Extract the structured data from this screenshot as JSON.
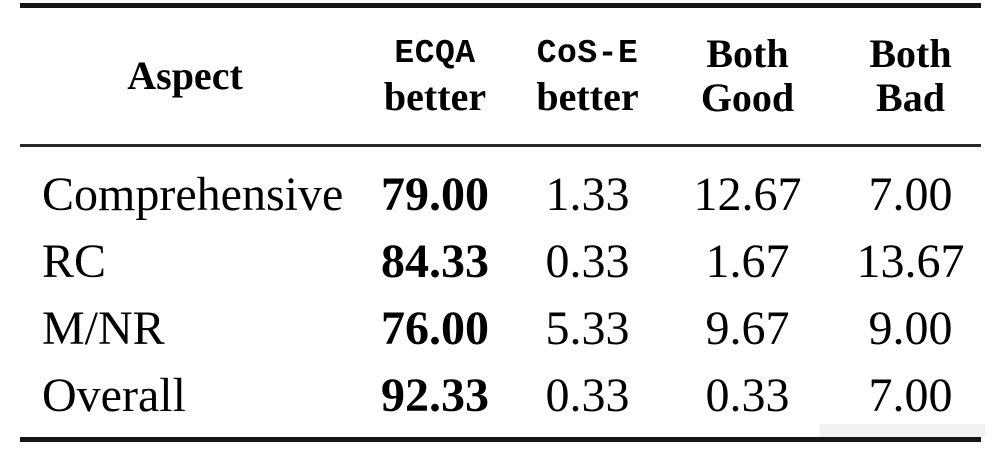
{
  "page": {
    "background": "#ffffff"
  },
  "colors": {
    "text": "#000000",
    "rule_thick": "#161616",
    "rule_mid": "#2a2a2a",
    "artifact": "#f1f1f1"
  },
  "table": {
    "header": {
      "aspect": "Aspect",
      "ecqa_line1": "ECQA",
      "ecqa_line2": "better",
      "cose_line1": "CoS-E",
      "cose_line2": "better",
      "both_good_line1": "Both",
      "both_good_line2": "Good",
      "both_bad_line1": "Both",
      "both_bad_line2": "Bad"
    },
    "rows": [
      {
        "aspect": "Comprehensive",
        "ecqa_better": "79.00",
        "cose_better": "1.33",
        "both_good": "12.67",
        "both_bad": "7.00"
      },
      {
        "aspect": "RC",
        "ecqa_better": "84.33",
        "cose_better": "0.33",
        "both_good": "1.67",
        "both_bad": "13.67"
      },
      {
        "aspect": "M/NR",
        "ecqa_better": "76.00",
        "cose_better": "5.33",
        "both_good": "9.67",
        "both_bad": "9.00"
      },
      {
        "aspect": "Overall",
        "ecqa_better": "92.33",
        "cose_better": "0.33",
        "both_good": "0.33",
        "both_bad": "7.00"
      }
    ]
  },
  "chart_data": {
    "type": "table",
    "columns": [
      "Aspect",
      "ECQA better",
      "CoS-E better",
      "Both Good",
      "Both Bad"
    ],
    "rows": [
      [
        "Comprehensive",
        79.0,
        1.33,
        12.67,
        7.0
      ],
      [
        "RC",
        84.33,
        0.33,
        1.67,
        13.67
      ],
      [
        "M/NR",
        76.0,
        5.33,
        9.67,
        9.0
      ],
      [
        "Overall",
        92.33,
        0.33,
        0.33,
        7.0
      ]
    ],
    "notes": "Values in the 'ECQA better' column are bold; 'ECQA' and 'CoS-E' header tokens are typewriter/monospace bold; top and bottom rules thick, header separator thinner."
  }
}
